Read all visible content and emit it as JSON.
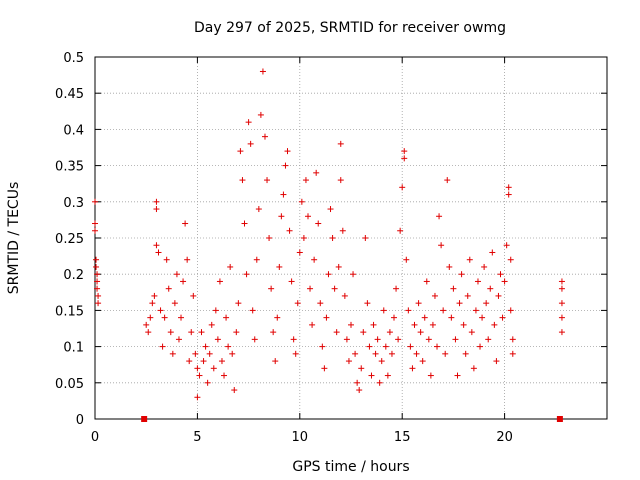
{
  "chart_data": {
    "type": "scatter",
    "title": "Day 297 of 2025, SRMTID for receiver owmg",
    "xlabel": "GPS time / hours",
    "ylabel": "SRMTID / TECUs",
    "xlim": [
      0,
      25
    ],
    "ylim": [
      0,
      0.5
    ],
    "x_ticks": [
      0,
      5,
      10,
      15,
      20
    ],
    "y_ticks": [
      0,
      0.05,
      0.1,
      0.15,
      0.2,
      0.25,
      0.3,
      0.35,
      0.4,
      0.45,
      0.5
    ],
    "grid": true,
    "marker": "+",
    "series_color": "#e00000",
    "series": [
      {
        "name": "owmg SRMTID",
        "points": [
          [
            0.0,
            0.3
          ],
          [
            0.0,
            0.27
          ],
          [
            0.0,
            0.26
          ],
          [
            0.05,
            0.22
          ],
          [
            0.05,
            0.21
          ],
          [
            0.1,
            0.19
          ],
          [
            0.1,
            0.18
          ],
          [
            0.15,
            0.17
          ],
          [
            0.15,
            0.16
          ],
          [
            0.1,
            0.2
          ],
          [
            2.5,
            0.13
          ],
          [
            2.6,
            0.12
          ],
          [
            2.7,
            0.14
          ],
          [
            2.8,
            0.16
          ],
          [
            2.9,
            0.17
          ],
          [
            3.0,
            0.24
          ],
          [
            3.0,
            0.29
          ],
          [
            3.0,
            0.3
          ],
          [
            3.1,
            0.23
          ],
          [
            3.2,
            0.15
          ],
          [
            3.3,
            0.1
          ],
          [
            3.4,
            0.14
          ],
          [
            3.5,
            0.22
          ],
          [
            3.6,
            0.18
          ],
          [
            3.7,
            0.12
          ],
          [
            3.8,
            0.09
          ],
          [
            3.9,
            0.16
          ],
          [
            4.0,
            0.2
          ],
          [
            4.1,
            0.11
          ],
          [
            4.2,
            0.14
          ],
          [
            4.3,
            0.19
          ],
          [
            4.4,
            0.27
          ],
          [
            4.5,
            0.22
          ],
          [
            4.6,
            0.08
          ],
          [
            4.7,
            0.12
          ],
          [
            4.8,
            0.17
          ],
          [
            4.9,
            0.09
          ],
          [
            5.0,
            0.07
          ],
          [
            5.0,
            0.03
          ],
          [
            5.1,
            0.06
          ],
          [
            5.2,
            0.12
          ],
          [
            5.3,
            0.08
          ],
          [
            5.4,
            0.1
          ],
          [
            5.5,
            0.05
          ],
          [
            5.6,
            0.09
          ],
          [
            5.7,
            0.13
          ],
          [
            5.8,
            0.07
          ],
          [
            5.9,
            0.15
          ],
          [
            6.0,
            0.11
          ],
          [
            6.1,
            0.19
          ],
          [
            6.2,
            0.08
          ],
          [
            6.3,
            0.06
          ],
          [
            6.4,
            0.14
          ],
          [
            6.5,
            0.1
          ],
          [
            6.6,
            0.21
          ],
          [
            6.7,
            0.09
          ],
          [
            6.8,
            0.04
          ],
          [
            6.9,
            0.12
          ],
          [
            7.0,
            0.16
          ],
          [
            7.1,
            0.37
          ],
          [
            7.2,
            0.33
          ],
          [
            7.3,
            0.27
          ],
          [
            7.4,
            0.2
          ],
          [
            7.5,
            0.41
          ],
          [
            7.6,
            0.38
          ],
          [
            7.7,
            0.15
          ],
          [
            7.8,
            0.11
          ],
          [
            7.9,
            0.22
          ],
          [
            8.0,
            0.29
          ],
          [
            8.1,
            0.42
          ],
          [
            8.2,
            0.48
          ],
          [
            8.3,
            0.39
          ],
          [
            8.4,
            0.33
          ],
          [
            8.5,
            0.25
          ],
          [
            8.6,
            0.18
          ],
          [
            8.7,
            0.12
          ],
          [
            8.8,
            0.08
          ],
          [
            8.9,
            0.14
          ],
          [
            9.0,
            0.21
          ],
          [
            9.1,
            0.28
          ],
          [
            9.2,
            0.31
          ],
          [
            9.3,
            0.35
          ],
          [
            9.4,
            0.37
          ],
          [
            9.5,
            0.26
          ],
          [
            9.6,
            0.19
          ],
          [
            9.7,
            0.11
          ],
          [
            9.8,
            0.09
          ],
          [
            9.9,
            0.16
          ],
          [
            10.0,
            0.23
          ],
          [
            10.1,
            0.3
          ],
          [
            10.2,
            0.25
          ],
          [
            10.3,
            0.33
          ],
          [
            10.4,
            0.28
          ],
          [
            10.5,
            0.18
          ],
          [
            10.6,
            0.13
          ],
          [
            10.7,
            0.22
          ],
          [
            10.8,
            0.34
          ],
          [
            10.9,
            0.27
          ],
          [
            11.0,
            0.16
          ],
          [
            11.1,
            0.1
          ],
          [
            11.2,
            0.07
          ],
          [
            11.3,
            0.14
          ],
          [
            11.4,
            0.2
          ],
          [
            11.5,
            0.29
          ],
          [
            11.6,
            0.25
          ],
          [
            11.7,
            0.18
          ],
          [
            11.8,
            0.12
          ],
          [
            11.9,
            0.21
          ],
          [
            12.0,
            0.33
          ],
          [
            12.0,
            0.38
          ],
          [
            12.1,
            0.26
          ],
          [
            12.2,
            0.17
          ],
          [
            12.3,
            0.11
          ],
          [
            12.4,
            0.08
          ],
          [
            12.5,
            0.13
          ],
          [
            12.6,
            0.2
          ],
          [
            12.7,
            0.09
          ],
          [
            12.8,
            0.05
          ],
          [
            12.9,
            0.04
          ],
          [
            13.0,
            0.07
          ],
          [
            13.1,
            0.12
          ],
          [
            13.2,
            0.25
          ],
          [
            13.3,
            0.16
          ],
          [
            13.4,
            0.1
          ],
          [
            13.5,
            0.06
          ],
          [
            13.6,
            0.13
          ],
          [
            13.7,
            0.09
          ],
          [
            13.8,
            0.11
          ],
          [
            13.9,
            0.05
          ],
          [
            14.0,
            0.08
          ],
          [
            14.1,
            0.15
          ],
          [
            14.2,
            0.1
          ],
          [
            14.3,
            0.06
          ],
          [
            14.4,
            0.12
          ],
          [
            14.5,
            0.09
          ],
          [
            14.6,
            0.14
          ],
          [
            14.7,
            0.18
          ],
          [
            14.8,
            0.11
          ],
          [
            14.9,
            0.26
          ],
          [
            15.0,
            0.32
          ],
          [
            15.1,
            0.36
          ],
          [
            15.1,
            0.37
          ],
          [
            15.2,
            0.22
          ],
          [
            15.3,
            0.15
          ],
          [
            15.4,
            0.1
          ],
          [
            15.5,
            0.07
          ],
          [
            15.6,
            0.13
          ],
          [
            15.7,
            0.09
          ],
          [
            15.8,
            0.16
          ],
          [
            15.9,
            0.12
          ],
          [
            16.0,
            0.08
          ],
          [
            16.1,
            0.14
          ],
          [
            16.2,
            0.19
          ],
          [
            16.3,
            0.11
          ],
          [
            16.4,
            0.06
          ],
          [
            16.5,
            0.13
          ],
          [
            16.6,
            0.17
          ],
          [
            16.7,
            0.1
          ],
          [
            16.8,
            0.28
          ],
          [
            16.9,
            0.24
          ],
          [
            17.0,
            0.15
          ],
          [
            17.1,
            0.09
          ],
          [
            17.2,
            0.33
          ],
          [
            17.3,
            0.21
          ],
          [
            17.4,
            0.14
          ],
          [
            17.5,
            0.18
          ],
          [
            17.6,
            0.11
          ],
          [
            17.7,
            0.06
          ],
          [
            17.8,
            0.16
          ],
          [
            17.9,
            0.2
          ],
          [
            18.0,
            0.13
          ],
          [
            18.1,
            0.09
          ],
          [
            18.2,
            0.17
          ],
          [
            18.3,
            0.22
          ],
          [
            18.4,
            0.12
          ],
          [
            18.5,
            0.07
          ],
          [
            18.6,
            0.15
          ],
          [
            18.7,
            0.19
          ],
          [
            18.8,
            0.1
          ],
          [
            18.9,
            0.14
          ],
          [
            19.0,
            0.21
          ],
          [
            19.1,
            0.16
          ],
          [
            19.2,
            0.11
          ],
          [
            19.3,
            0.18
          ],
          [
            19.4,
            0.23
          ],
          [
            19.5,
            0.13
          ],
          [
            19.6,
            0.08
          ],
          [
            19.7,
            0.17
          ],
          [
            19.8,
            0.2
          ],
          [
            19.9,
            0.14
          ],
          [
            20.0,
            0.19
          ],
          [
            20.1,
            0.24
          ],
          [
            20.2,
            0.32
          ],
          [
            20.2,
            0.31
          ],
          [
            20.3,
            0.22
          ],
          [
            20.3,
            0.15
          ],
          [
            20.4,
            0.11
          ],
          [
            20.4,
            0.09
          ],
          [
            22.8,
            0.19
          ],
          [
            22.8,
            0.18
          ],
          [
            22.8,
            0.16
          ],
          [
            22.8,
            0.14
          ],
          [
            22.8,
            0.12
          ]
        ]
      }
    ],
    "missing_data_markers": [
      [
        2.4,
        0
      ],
      [
        22.7,
        0
      ]
    ]
  }
}
